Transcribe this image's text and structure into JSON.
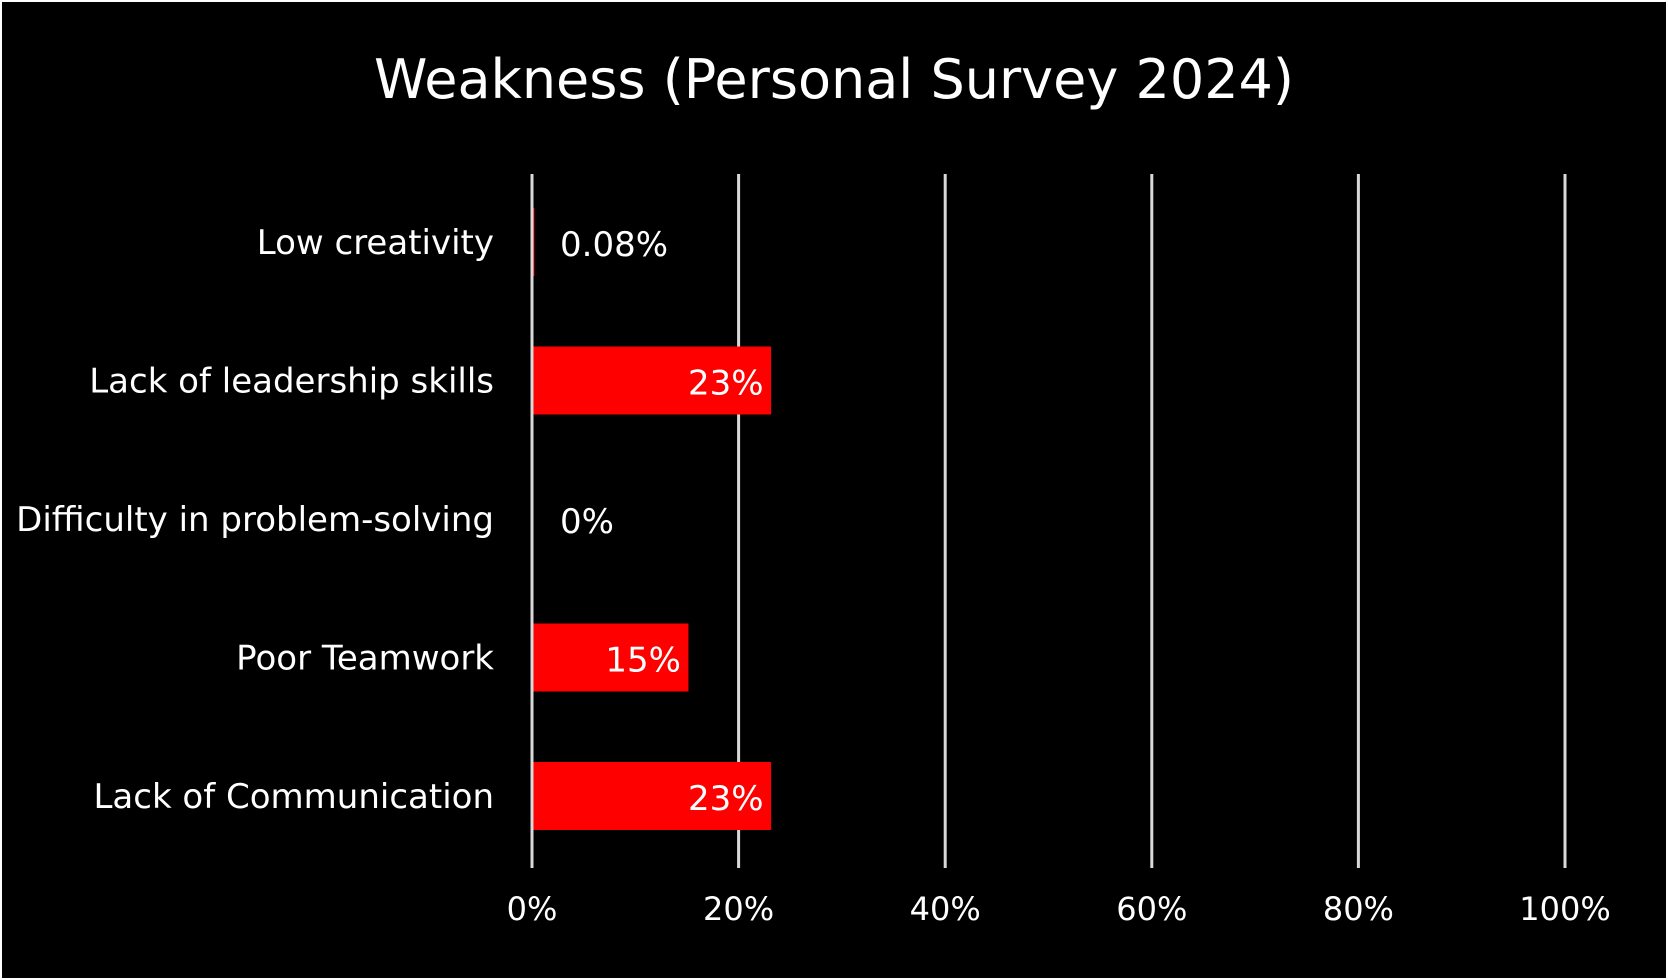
{
  "chart_data": {
    "type": "bar",
    "orientation": "horizontal",
    "title": "Weakness (Personal Survey 2024)",
    "xlabel": "",
    "ylabel": "",
    "categories": [
      "Low creativity",
      "Lack of leadership skills",
      "Difficulty in problem-solving",
      "Poor Teamwork",
      "Lack of Communication"
    ],
    "values": [
      0.08,
      23,
      0,
      15,
      23
    ],
    "value_labels": [
      "0.08%",
      "23%",
      "0%",
      "15%",
      "23%"
    ],
    "xlim": [
      0,
      100
    ],
    "xticks": [
      0,
      20,
      40,
      60,
      80,
      100
    ],
    "xtick_labels": [
      "0%",
      "20%",
      "40%",
      "60%",
      "80%",
      "100%"
    ],
    "grid": "vertical",
    "legend": "none",
    "colors": {
      "background": "#000000",
      "bar": "#ff0000",
      "text": "#ffffff",
      "gridline": "#d9d9d9"
    }
  }
}
